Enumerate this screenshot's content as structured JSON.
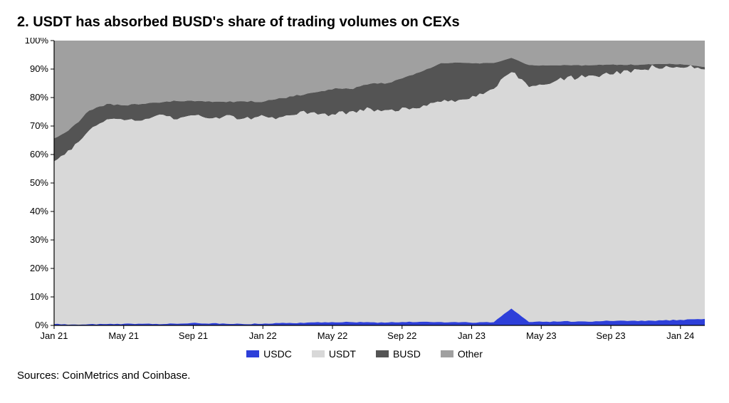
{
  "title": "2. USDT has absorbed BUSD's share of trading volumes on CEXs",
  "sources": "Sources: CoinMetrics and Coinbase.",
  "chart": {
    "type": "stacked-area",
    "ylim": [
      0,
      100
    ],
    "ytick_step": 10,
    "y_labels": [
      "0%",
      "10%",
      "20%",
      "30%",
      "40%",
      "50%",
      "60%",
      "70%",
      "80%",
      "90%",
      "100%"
    ],
    "x_labels": [
      "Jan 21",
      "May 21",
      "Sep 21",
      "Jan 22",
      "May 22",
      "Sep 22",
      "Jan 23",
      "May 23",
      "Sep 23",
      "Jan 24"
    ],
    "background_color": "#ffffff",
    "axis_color": "#000000",
    "axis_width": 1.2,
    "tick_fontsize": 13,
    "label_fontsize": 14,
    "legend": [
      {
        "label": "USDC",
        "color": "#2d3fd9"
      },
      {
        "label": "USDT",
        "color": "#d8d8d8"
      },
      {
        "label": "BUSD",
        "color": "#545454"
      },
      {
        "label": "Other",
        "color": "#a0a0a0"
      }
    ],
    "series_order_bottom_to_top": [
      "USDC",
      "USDT",
      "BUSD",
      "Other"
    ],
    "data": {
      "x": [
        0,
        1,
        2,
        3,
        4,
        5,
        6,
        7,
        8,
        9,
        10,
        11,
        12,
        13,
        14,
        15,
        16,
        17,
        18,
        19,
        20,
        21,
        22,
        23,
        24,
        25,
        26,
        27,
        28,
        29,
        30,
        31,
        32,
        33,
        34,
        35,
        36,
        37
      ],
      "USDC": [
        0.5,
        0.3,
        0.4,
        0.6,
        0.5,
        0.7,
        0.5,
        0.6,
        0.8,
        0.7,
        0.6,
        0.5,
        0.7,
        0.8,
        0.9,
        1.0,
        1.1,
        1.2,
        1.0,
        1.1,
        1.2,
        1.3,
        1.1,
        1.2,
        1.0,
        1.1,
        6.0,
        1.3,
        1.2,
        1.4,
        1.3,
        1.5,
        1.6,
        1.5,
        1.7,
        1.8,
        2.0,
        2.2
      ],
      "USDT": [
        57,
        62,
        68,
        72,
        71,
        72,
        73,
        72,
        73,
        72,
        73,
        72,
        73,
        72,
        74,
        73,
        73,
        74,
        75,
        74,
        75,
        76,
        77,
        78,
        80,
        82,
        83,
        83,
        84,
        85,
        86,
        86,
        87,
        88,
        89,
        89,
        89,
        88
      ],
      "BUSD": [
        8,
        7,
        7,
        5,
        6,
        5,
        5,
        6,
        5,
        6,
        5,
        6,
        5,
        7,
        6,
        8,
        9,
        8,
        9,
        10,
        11,
        12,
        14,
        13,
        11,
        9,
        5,
        7,
        6,
        5,
        4,
        4,
        3,
        2,
        1,
        1,
        0.5,
        0.5
      ],
      "Other": [
        34.5,
        30.7,
        24.6,
        22.4,
        22.5,
        22.3,
        21.5,
        21.4,
        21.2,
        21.3,
        21.4,
        21.5,
        21.3,
        20.2,
        19.1,
        18.0,
        16.9,
        16.8,
        15.0,
        14.9,
        12.8,
        10.7,
        7.9,
        7.8,
        8.0,
        7.9,
        6.0,
        8.7,
        8.8,
        8.6,
        8.7,
        8.5,
        8.4,
        8.5,
        8.3,
        8.2,
        8.5,
        9.3
      ]
    },
    "noise_amplitude": 1.8,
    "noise_per_step": 5
  }
}
